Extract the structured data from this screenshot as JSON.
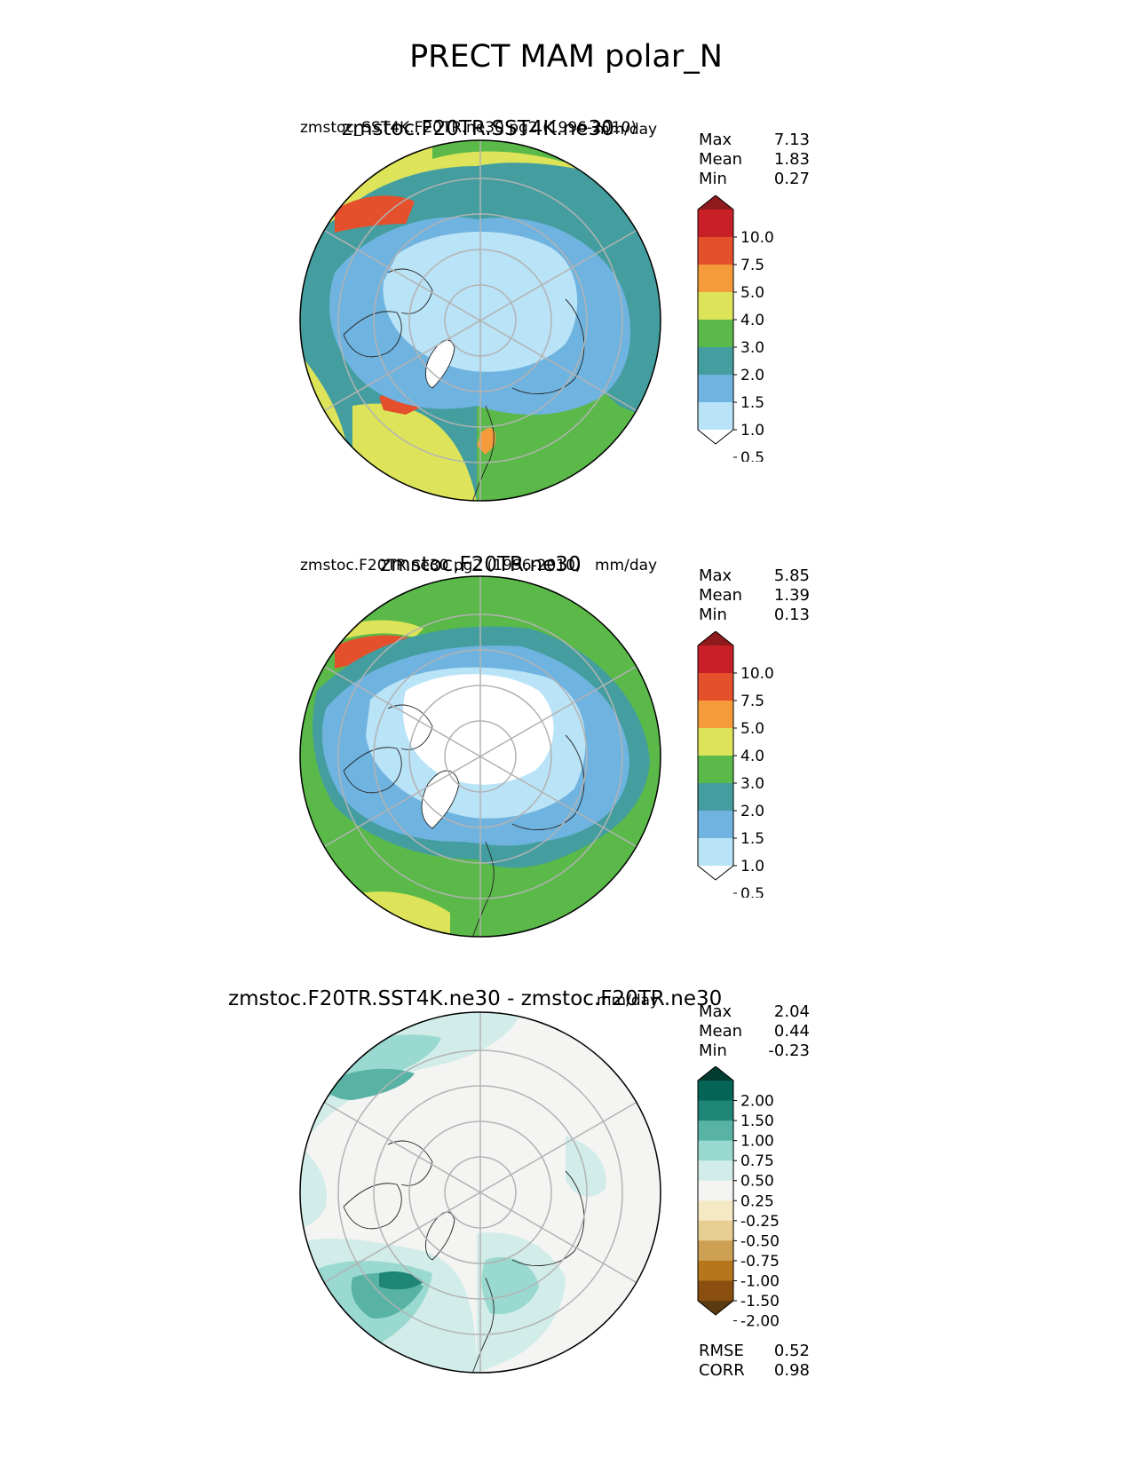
{
  "suptitle": "PRECT MAM polar_N",
  "palettes": {
    "prect": [
      "#ffffff",
      "#b9e3f7",
      "#6fb3e0",
      "#449e9f",
      "#5ab949",
      "#dde45a",
      "#f59b3c",
      "#e44f2c",
      "#c82026",
      "#8e1a1d"
    ],
    "diff": [
      "#5a3a0e",
      "#8a4f0e",
      "#b5761c",
      "#cda053",
      "#e6ce93",
      "#f5e9c5",
      "#f4f4f2",
      "#d2ede9",
      "#99d9cf",
      "#58b3a5",
      "#1e8577",
      "#046456",
      "#023c30"
    ]
  },
  "chart_data": [
    {
      "type": "heatmap",
      "id": "panel1",
      "title": "zmstoc.F20TR.SST4K.ne30",
      "subtitle": "zmstoc_SST4K.F20TR.ne30 pg2 (1996-2010)",
      "units": "mm/day",
      "stats": [
        {
          "label": "Max",
          "value": "7.13"
        },
        {
          "label": "Mean",
          "value": "1.83"
        },
        {
          "label": "Min",
          "value": "0.27"
        }
      ],
      "colorbar_levels": [
        "10.0",
        "7.5",
        "5.0",
        "4.0",
        "3.0",
        "2.0",
        "1.5",
        "1.0",
        "0.5"
      ],
      "level_values": [
        0.5,
        1.0,
        1.5,
        2.0,
        3.0,
        4.0,
        5.0,
        7.5,
        10.0
      ]
    },
    {
      "type": "heatmap",
      "id": "panel2",
      "title": "zmstoc.F20TR.ne30",
      "subtitle": "zmstoc.F20TR.ne30 pg2 (1996-2010)",
      "units": "mm/day",
      "stats": [
        {
          "label": "Max",
          "value": "5.85"
        },
        {
          "label": "Mean",
          "value": "1.39"
        },
        {
          "label": "Min",
          "value": "0.13"
        }
      ],
      "colorbar_levels": [
        "10.0",
        "7.5",
        "5.0",
        "4.0",
        "3.0",
        "2.0",
        "1.5",
        "1.0",
        "0.5"
      ],
      "level_values": [
        0.5,
        1.0,
        1.5,
        2.0,
        3.0,
        4.0,
        5.0,
        7.5,
        10.0
      ]
    },
    {
      "type": "heatmap",
      "id": "panel3",
      "title": "zmstoc.F20TR.SST4K.ne30 - zmstoc.F20TR.ne30",
      "units": "mm/day",
      "stats": [
        {
          "label": "Max",
          "value": "2.04"
        },
        {
          "label": "Mean",
          "value": "0.44"
        },
        {
          "label": "Min",
          "value": "-0.23"
        }
      ],
      "colorbar_levels": [
        "2.00",
        "1.50",
        "1.00",
        "0.75",
        "0.50",
        "0.25",
        "-0.25",
        "-0.50",
        "-0.75",
        "-1.00",
        "-1.50",
        "-2.00"
      ],
      "level_values": [
        -2.0,
        -1.5,
        -1.0,
        -0.75,
        -0.5,
        -0.25,
        0.25,
        0.5,
        0.75,
        1.0,
        1.5,
        2.0
      ],
      "metrics": [
        {
          "label": "RMSE",
          "value": "0.52"
        },
        {
          "label": "CORR",
          "value": "0.98"
        }
      ]
    }
  ]
}
